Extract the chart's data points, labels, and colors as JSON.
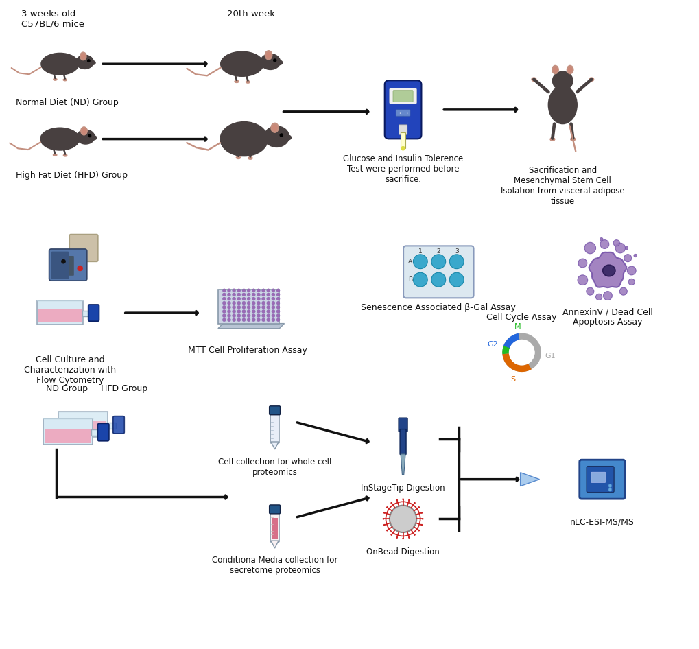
{
  "bg_color": "#ffffff",
  "figsize": [
    10.2,
    9.46
  ],
  "dpi": 100,
  "texts": {
    "weeks_old": "3 weeks old\nC57BL/6 mice",
    "20th_week": "20th week",
    "nd_group": "Normal Diet (ND) Group",
    "hfd_group": "High Fat Diet (HFD) Group",
    "gtt_itt": "Glucose and Insulin Tolerence\nTest were performed before\nsacrifice.",
    "sacrifice": "Sacrification and\nMesenchymal Stem Cell\nIsolation from visceral adipose\ntissue",
    "cell_culture": "Cell Culture and\nCharacterization with\nFlow Cytometry",
    "mtt": "MTT Cell Proliferation Assay",
    "senescence": "Senescence Associated β-Gal Assay",
    "annexin": "AnnexinV / Dead Cell\nApoptosis Assay",
    "cell_cycle": "Cell Cycle Assay",
    "g1": "G1",
    "g2": "G2",
    "s": "S",
    "m": "M",
    "nd_group2": "ND Group",
    "hfd_group2": "HFD Group",
    "cell_collection": "Cell collection for whole cell\nproteomics",
    "conditioned": "Conditiona Media collection for\nsecretome proteomics",
    "instage": "InStageTip Digestion",
    "onbead": "OnBead Digestion",
    "nLC": "nLC-ESI-MS/MS"
  },
  "colors": {
    "arrow": "#111111",
    "mouse_body": "#484040",
    "mouse_body_dark": "#3a3535",
    "mouse_ear": "#c49080",
    "mouse_tail": "#c49080",
    "text": "#111111",
    "glucometer_blue_dark": "#1a3080",
    "glucometer_blue": "#2244bb",
    "glucometer_screen": "#b0cc98",
    "glucometer_white": "#f0f0f0",
    "flow_blue": "#5577aa",
    "flow_beige": "#ccc0a8",
    "flask_glass": "#d8eaf4",
    "flask_glass_dark": "#b8ccd8",
    "flask_pink": "#f0a0b8",
    "flask_cap": "#1a44aa",
    "plate_bg": "#ccd4e4",
    "plate_well_purple": "#9b6bb5",
    "six_well_bg": "#dce8f0",
    "six_well_blue": "#3aa8cc",
    "cell_outer": "#8866aa",
    "cell_body": "#9977bb",
    "cell_nucleus": "#3a2a66",
    "cell_bubble": "#9977bb",
    "cycle_gray": "#aaaaaa",
    "cycle_white": "#ffffff",
    "cycle_orange": "#dd6600",
    "cycle_blue": "#2266dd",
    "cycle_green": "#22bb22",
    "tube_cap_blue": "#225588",
    "tube_body": "#e8eef8",
    "tube_lines": "#aabbcc",
    "tube_red_content": "#cc4466",
    "tube_red_cap": "#226688",
    "bead_body": "#cccccc",
    "bead_red": "#cc2222",
    "pipette_dark": "#224488",
    "pipette_light": "#88aabb",
    "mass_blue": "#4488cc",
    "mass_dark": "#2255aa"
  }
}
